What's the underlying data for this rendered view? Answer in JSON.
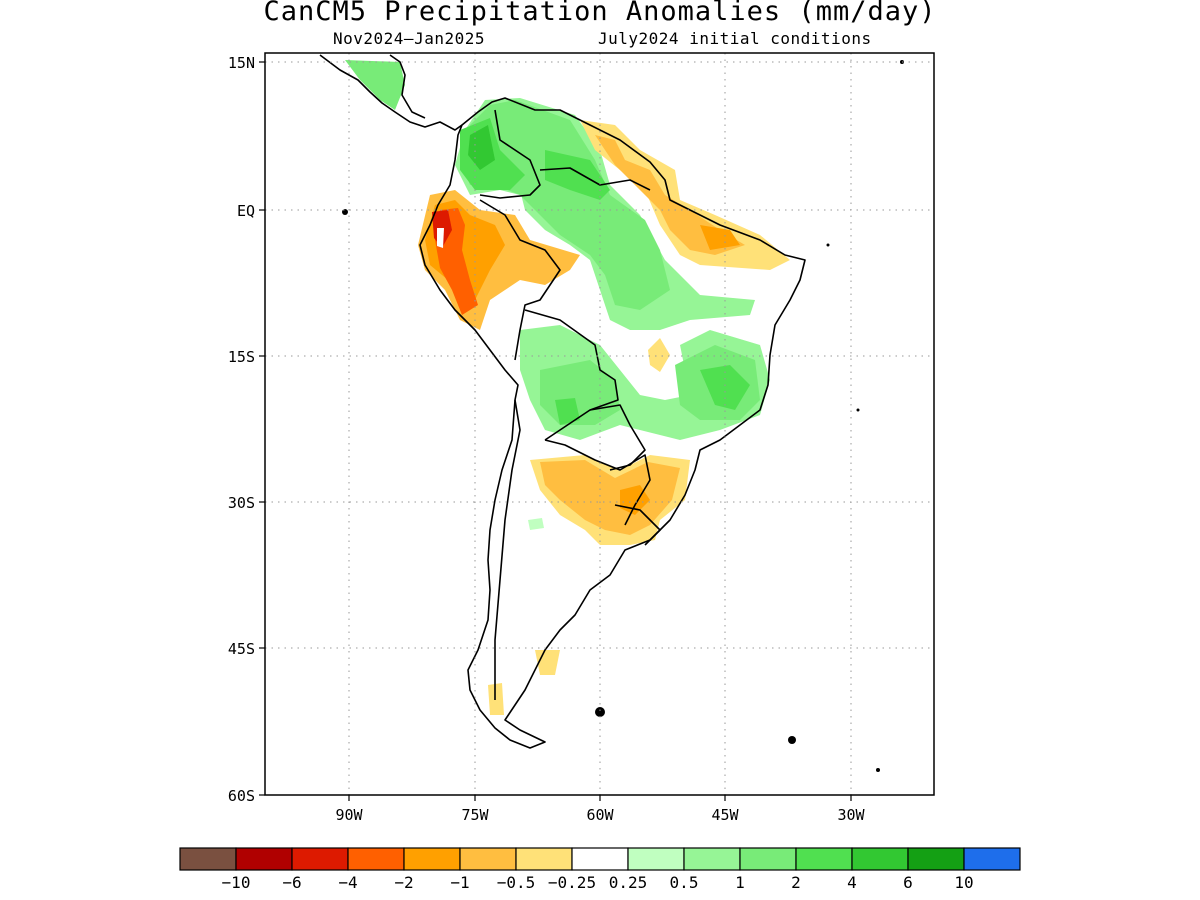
{
  "title": "CanCM5 Precipitation Anomalies (mm/day)",
  "subtitle_left": "Nov2024–Jan2025",
  "subtitle_right": "July2024 initial conditions",
  "map": {
    "lon_range": [
      -100,
      -20
    ],
    "lat_range": [
      -60,
      15
    ],
    "lat_ticks": [
      {
        "value": 15,
        "label": "15N"
      },
      {
        "value": 0,
        "label": "EQ"
      },
      {
        "value": -15,
        "label": "15S"
      },
      {
        "value": -30,
        "label": "30S"
      },
      {
        "value": -45,
        "label": "45S"
      },
      {
        "value": -60,
        "label": "60S"
      }
    ],
    "lon_ticks": [
      {
        "value": -90,
        "label": "90W"
      },
      {
        "value": -75,
        "label": "75W"
      },
      {
        "value": -60,
        "label": "60W"
      },
      {
        "value": -45,
        "label": "45W"
      },
      {
        "value": -30,
        "label": "30W"
      }
    ],
    "grid": "dotted"
  },
  "colorbar": {
    "colors": [
      "#7a5040",
      "#b00000",
      "#dd1a00",
      "#ff6000",
      "#ffa000",
      "#ffbe40",
      "#ffe178",
      "#ffffff",
      "#c0ffc0",
      "#96f596",
      "#78eb78",
      "#50e050",
      "#32c832",
      "#14a014",
      "#1e6eeb"
    ],
    "labels": [
      "−10",
      "−6",
      "−4",
      "−2",
      "−1",
      "−0.5",
      "−0.25",
      "0.25",
      "0.5",
      "1",
      "2",
      "4",
      "6",
      "10"
    ]
  },
  "colors": {
    "accent": "#000000"
  }
}
